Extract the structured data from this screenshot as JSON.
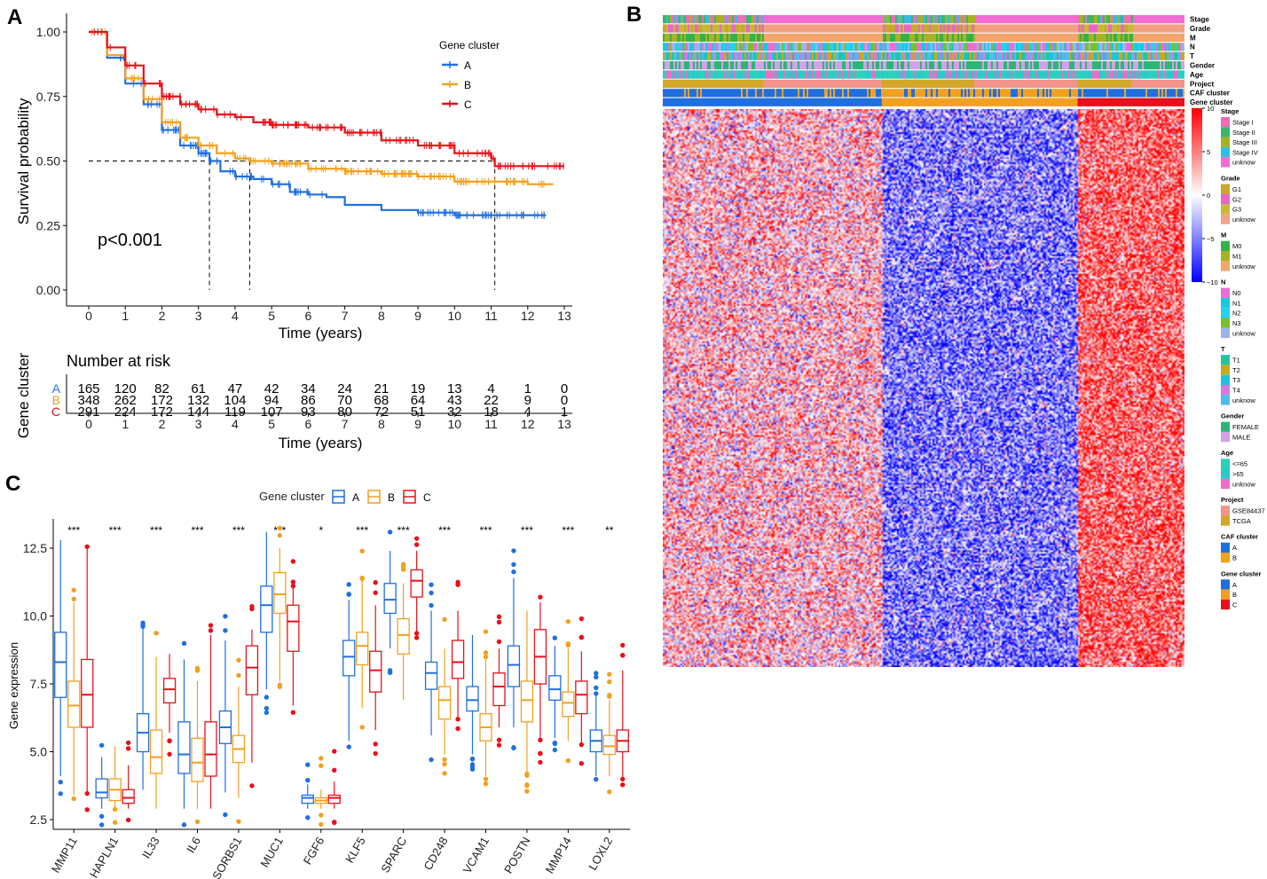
{
  "panels": {
    "A": "A",
    "B": "B",
    "C": "C"
  },
  "colors": {
    "A": "#1f6fe0",
    "B": "#f2a01f",
    "C": "#e8101a"
  },
  "chart_data": [
    {
      "id": "A",
      "type": "line",
      "title": "",
      "xlabel": "Time (years)",
      "ylabel": "Survival probability",
      "xlim": [
        0,
        13
      ],
      "ylim": [
        0,
        1
      ],
      "xticks": [
        0,
        1,
        2,
        3,
        4,
        5,
        6,
        7,
        8,
        9,
        10,
        11,
        12,
        13
      ],
      "yticks": [
        "0.00",
        "0.25",
        "0.50",
        "0.75",
        "1.00"
      ],
      "legend_title": "Gene cluster",
      "pvalue": "p<0.001",
      "median_survival": {
        "A": 3.3,
        "B": 4.4,
        "C": 11.1
      },
      "series": [
        {
          "name": "A",
          "x": [
            0,
            0.5,
            1,
            1.5,
            2,
            2.5,
            3,
            3.3,
            3.6,
            4,
            4.5,
            5,
            5.5,
            6,
            6.5,
            7,
            8,
            9,
            10,
            11,
            12,
            12.5
          ],
          "y": [
            1,
            0.9,
            0.8,
            0.72,
            0.62,
            0.56,
            0.53,
            0.5,
            0.46,
            0.44,
            0.43,
            0.41,
            0.38,
            0.37,
            0.36,
            0.33,
            0.31,
            0.3,
            0.29,
            0.29,
            0.29,
            0.29
          ]
        },
        {
          "name": "B",
          "x": [
            0,
            0.5,
            1,
            1.5,
            2,
            2.5,
            3,
            3.5,
            4,
            4.4,
            5,
            6,
            7,
            8,
            9,
            10,
            11,
            12,
            12.7
          ],
          "y": [
            1,
            0.91,
            0.82,
            0.74,
            0.65,
            0.59,
            0.56,
            0.53,
            0.51,
            0.5,
            0.49,
            0.47,
            0.46,
            0.45,
            0.44,
            0.42,
            0.42,
            0.41,
            0.41
          ]
        },
        {
          "name": "C",
          "x": [
            0,
            0.5,
            1,
            1.5,
            2,
            2.5,
            3,
            3.5,
            4,
            4.5,
            5,
            6,
            7,
            8,
            9,
            10,
            11,
            11.1,
            12,
            13
          ],
          "y": [
            1,
            0.94,
            0.87,
            0.8,
            0.75,
            0.72,
            0.7,
            0.68,
            0.67,
            0.65,
            0.64,
            0.63,
            0.61,
            0.58,
            0.56,
            0.53,
            0.51,
            0.48,
            0.48,
            0.48
          ]
        }
      ]
    },
    {
      "id": "A-risk",
      "type": "table",
      "title": "Number at risk",
      "ylabel": "Gene cluster",
      "xlabel": "Time (years)",
      "columns": [
        0,
        1,
        2,
        3,
        4,
        5,
        6,
        7,
        8,
        9,
        10,
        11,
        12,
        13
      ],
      "rows": [
        {
          "name": "A",
          "values": [
            165,
            120,
            82,
            61,
            47,
            42,
            34,
            24,
            21,
            19,
            13,
            4,
            1,
            0
          ]
        },
        {
          "name": "B",
          "values": [
            348,
            262,
            172,
            132,
            104,
            94,
            86,
            70,
            68,
            64,
            43,
            22,
            9,
            0
          ]
        },
        {
          "name": "C",
          "values": [
            291,
            224,
            172,
            144,
            119,
            107,
            93,
            80,
            72,
            51,
            32,
            18,
            4,
            1
          ]
        }
      ]
    },
    {
      "id": "B",
      "type": "heatmap",
      "annotation_rows": [
        "Stage",
        "Grade",
        "M",
        "N",
        "T",
        "Gender",
        "Age",
        "Project",
        "CAF cluster",
        "Gene cluster"
      ],
      "color_scale": {
        "min": -10,
        "max": 10,
        "ticks": [
          10,
          5,
          0,
          -5,
          -10
        ],
        "tick_labels": [
          "10",
          "5",
          "0",
          "−5",
          "−10"
        ]
      },
      "cluster_columns": {
        "A": 0.42,
        "B": 0.375,
        "C": 0.205
      },
      "mean_expression": {
        "A": 2,
        "B": -5,
        "C": 6
      },
      "legend": [
        {
          "title": "Stage",
          "items": [
            {
              "label": "Stage I",
              "color": "#f06cb4"
            },
            {
              "label": "Stage II",
              "color": "#3ab56a"
            },
            {
              "label": "Stage III",
              "color": "#a6b21f"
            },
            {
              "label": "Stage IV",
              "color": "#33bde6"
            },
            {
              "label": "unknow",
              "color": "#f06cd0"
            }
          ]
        },
        {
          "title": "Grade",
          "items": [
            {
              "label": "G1",
              "color": "#c7a82a"
            },
            {
              "label": "G2",
              "color": "#e867c4"
            },
            {
              "label": "G3",
              "color": "#c7b83a"
            },
            {
              "label": "unknow",
              "color": "#f3a183"
            }
          ]
        },
        {
          "title": "M",
          "items": [
            {
              "label": "M0",
              "color": "#35b247"
            },
            {
              "label": "M1",
              "color": "#a8b226"
            },
            {
              "label": "unknow",
              "color": "#f3a56a"
            }
          ]
        },
        {
          "title": "N",
          "items": [
            {
              "label": "N0",
              "color": "#e86ed6"
            },
            {
              "label": "N1",
              "color": "#17c9e0"
            },
            {
              "label": "N2",
              "color": "#24d1ef"
            },
            {
              "label": "N3",
              "color": "#7abf2a"
            },
            {
              "label": "unknow",
              "color": "#9db2ec"
            }
          ]
        },
        {
          "title": "T",
          "items": [
            {
              "label": "T1",
              "color": "#22c4a0"
            },
            {
              "label": "T2",
              "color": "#c9a81f"
            },
            {
              "label": "T3",
              "color": "#1fc2dd"
            },
            {
              "label": "T4",
              "color": "#d478e2"
            },
            {
              "label": "unknow",
              "color": "#4fbcec"
            }
          ]
        },
        {
          "title": "Gender",
          "items": [
            {
              "label": "FEMALE",
              "color": "#2ab776"
            },
            {
              "label": "MALE",
              "color": "#d4a0ea"
            }
          ]
        },
        {
          "title": "Age",
          "items": [
            {
              "label": "<=65",
              "color": "#29d3b8"
            },
            {
              "label": ">65",
              "color": "#29c9cc"
            },
            {
              "label": "unknow",
              "color": "#f06ac8"
            }
          ]
        },
        {
          "title": "Project",
          "items": [
            {
              "label": "GSE84437",
              "color": "#f3938a"
            },
            {
              "label": "TCGA",
              "color": "#d3a72a"
            }
          ]
        },
        {
          "title": "CAF cluster",
          "items": [
            {
              "label": "A",
              "color": "#1f6fe0"
            },
            {
              "label": "B",
              "color": "#f2a01f"
            }
          ]
        },
        {
          "title": "Gene cluster",
          "items": [
            {
              "label": "A",
              "color": "#1f6fe0"
            },
            {
              "label": "B",
              "color": "#f2a01f"
            },
            {
              "label": "C",
              "color": "#e8101a"
            }
          ]
        }
      ]
    },
    {
      "id": "C",
      "type": "box",
      "ylabel": "Gene expression",
      "ylim": [
        2.2,
        13.5
      ],
      "yticks": [
        "2.5",
        "5.0",
        "7.5",
        "10.0",
        "12.5"
      ],
      "legend_title": "Gene cluster",
      "legend_labels": [
        "A",
        "B",
        "C"
      ],
      "categories": [
        "MMP11",
        "HAPLN1",
        "IL33",
        "IL6",
        "SORBS1",
        "MUC1",
        "FGF6",
        "KLF5",
        "SPARC",
        "CD248",
        "VCAM1",
        "POSTN",
        "MMP14",
        "LOXL2"
      ],
      "significance": [
        "***",
        "***",
        "***",
        "***",
        "***",
        "***",
        "*",
        "***",
        "***",
        "***",
        "***",
        "***",
        "***",
        "**"
      ],
      "series": [
        {
          "name": "A",
          "median": [
            8.3,
            3.5,
            5.7,
            4.9,
            5.9,
            10.4,
            3.3,
            8.5,
            10.6,
            7.9,
            6.9,
            8.2,
            7.3,
            5.4
          ],
          "q1": [
            7,
            3.3,
            5,
            4.2,
            5.3,
            9.4,
            3.1,
            7.8,
            10.1,
            7.3,
            6.5,
            7.4,
            6.9,
            5
          ],
          "q3": [
            9.4,
            4,
            6.4,
            6.1,
            6.5,
            11.1,
            3.4,
            9.1,
            11.2,
            8.3,
            7.4,
            8.9,
            7.8,
            5.8
          ],
          "lo": [
            4.1,
            2.9,
            3.6,
            2.9,
            3.5,
            7.3,
            2.9,
            5.4,
            8.8,
            5.6,
            4.9,
            5.9,
            5.5,
            4.1
          ],
          "hi": [
            12.8,
            4.8,
            9.6,
            8.4,
            9.1,
            13.1,
            3.8,
            10.6,
            12.4,
            10.2,
            9.3,
            11.4,
            8.9,
            7.1
          ]
        },
        {
          "name": "B",
          "median": [
            6.7,
            3.6,
            4.8,
            4.6,
            5.1,
            10.8,
            3.2,
            8.9,
            9.3,
            6.9,
            5.9,
            6.9,
            6.8,
            5.2
          ],
          "q1": [
            5.9,
            3.2,
            4.2,
            3.9,
            4.6,
            10.1,
            3.1,
            8.2,
            8.6,
            6.2,
            5.4,
            6.1,
            6.3,
            4.9
          ],
          "q3": [
            7.6,
            4,
            5.8,
            5.5,
            5.6,
            11.6,
            3.3,
            9.4,
            9.9,
            7.4,
            6.4,
            7.6,
            7.2,
            5.6
          ],
          "lo": [
            3.4,
            2.9,
            2.9,
            2.9,
            3.3,
            7.6,
            2.9,
            6.6,
            6.9,
            4.9,
            4.1,
            4.2,
            5.4,
            4.1
          ],
          "hi": [
            10.5,
            5.2,
            8.5,
            7.6,
            7.4,
            12.5,
            3.6,
            11.3,
            11.2,
            8.8,
            8.4,
            10.2,
            8.8,
            6.9
          ]
        },
        {
          "name": "C",
          "median": [
            7.1,
            3.3,
            7.3,
            4.9,
            8.1,
            9.8,
            3.3,
            8,
            11.3,
            8.3,
            7.4,
            8.5,
            7.1,
            5.4
          ],
          "q1": [
            5.9,
            3.1,
            6.8,
            4.1,
            7.1,
            8.7,
            3.1,
            7.2,
            10.7,
            7.7,
            6.7,
            7.5,
            6.4,
            5
          ],
          "q3": [
            8.4,
            3.6,
            7.7,
            6.1,
            8.9,
            10.4,
            3.4,
            8.7,
            11.7,
            9.1,
            7.9,
            9.5,
            7.6,
            5.8
          ],
          "lo": [
            3.5,
            2.9,
            5.7,
            2.9,
            4.6,
            6.7,
            2.9,
            5.8,
            9.4,
            6.2,
            5.9,
            5.5,
            5.3,
            4
          ],
          "hi": [
            12.5,
            4.5,
            8.6,
            9.3,
            9.5,
            11.1,
            3.9,
            10.4,
            12.4,
            10.2,
            8.8,
            10.5,
            8.7,
            8
          ]
        }
      ]
    }
  ]
}
